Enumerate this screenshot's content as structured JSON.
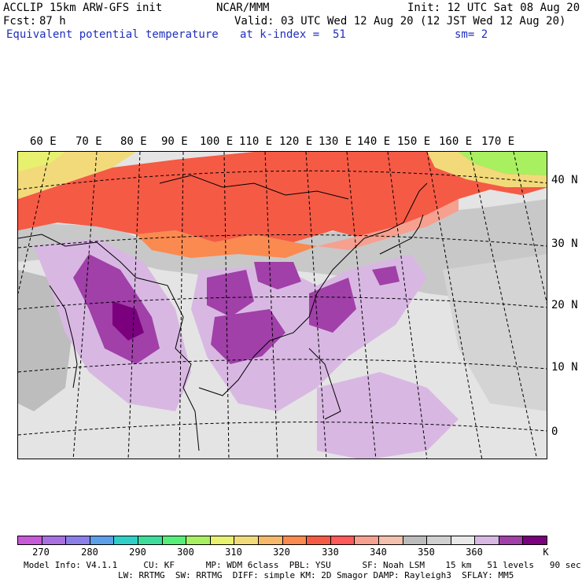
{
  "header": {
    "model": "ACCLIP 15km ARW-GFS init",
    "org": "NCAR/MMM",
    "init": "Init: 12 UTC Sat 08 Aug 20",
    "fcst_label": "Fcst:",
    "fcst_value": "87 h",
    "valid": "Valid: 03 UTC Wed 12 Aug 20 (12 JST Wed 12 Aug 20)",
    "field": "Equivalent potential temperature",
    "level": "at k-index =  51",
    "smooth": "sm= 2"
  },
  "map": {
    "lon_labels": [
      "60 E",
      "70 E",
      "80 E",
      "90 E",
      "100 E",
      "110 E",
      "120 E",
      "130 E",
      "140 E",
      "150 E",
      "160 E",
      "170 E"
    ],
    "lat_labels": [
      "40 N",
      "30 N",
      "20 N",
      "10 N",
      "0"
    ]
  },
  "colorbar": {
    "unit": "K",
    "ticks": [
      "270",
      "280",
      "290",
      "300",
      "310",
      "320",
      "330",
      "340",
      "350",
      "360"
    ],
    "colors": [
      "#c659d6",
      "#a96fe0",
      "#8a7fe8",
      "#5b9fe8",
      "#2fcfc8",
      "#3ddc9a",
      "#55ee78",
      "#a8f060",
      "#e8f070",
      "#f2da7a",
      "#f7b86a",
      "#fa8a50",
      "#f55a45",
      "#ff5a5a",
      "#f6a090",
      "#f2c0ab",
      "#bcbcbc",
      "#d0d0d0",
      "#e8e8e8",
      "#d8b8e2",
      "#a040a8",
      "#7a007e"
    ]
  },
  "footer": {
    "line1": "Model Info: V4.1.1     CU: KF      MP: WDM 6class  PBL: YSU      SF: Noah LSM    15 km   51 levels   90 sec",
    "line2": "LW: RRTMG  SW: RRTMG  DIFF: simple KM: 2D Smagor DAMP: Rayleigh3  SFLAY: MM5"
  }
}
